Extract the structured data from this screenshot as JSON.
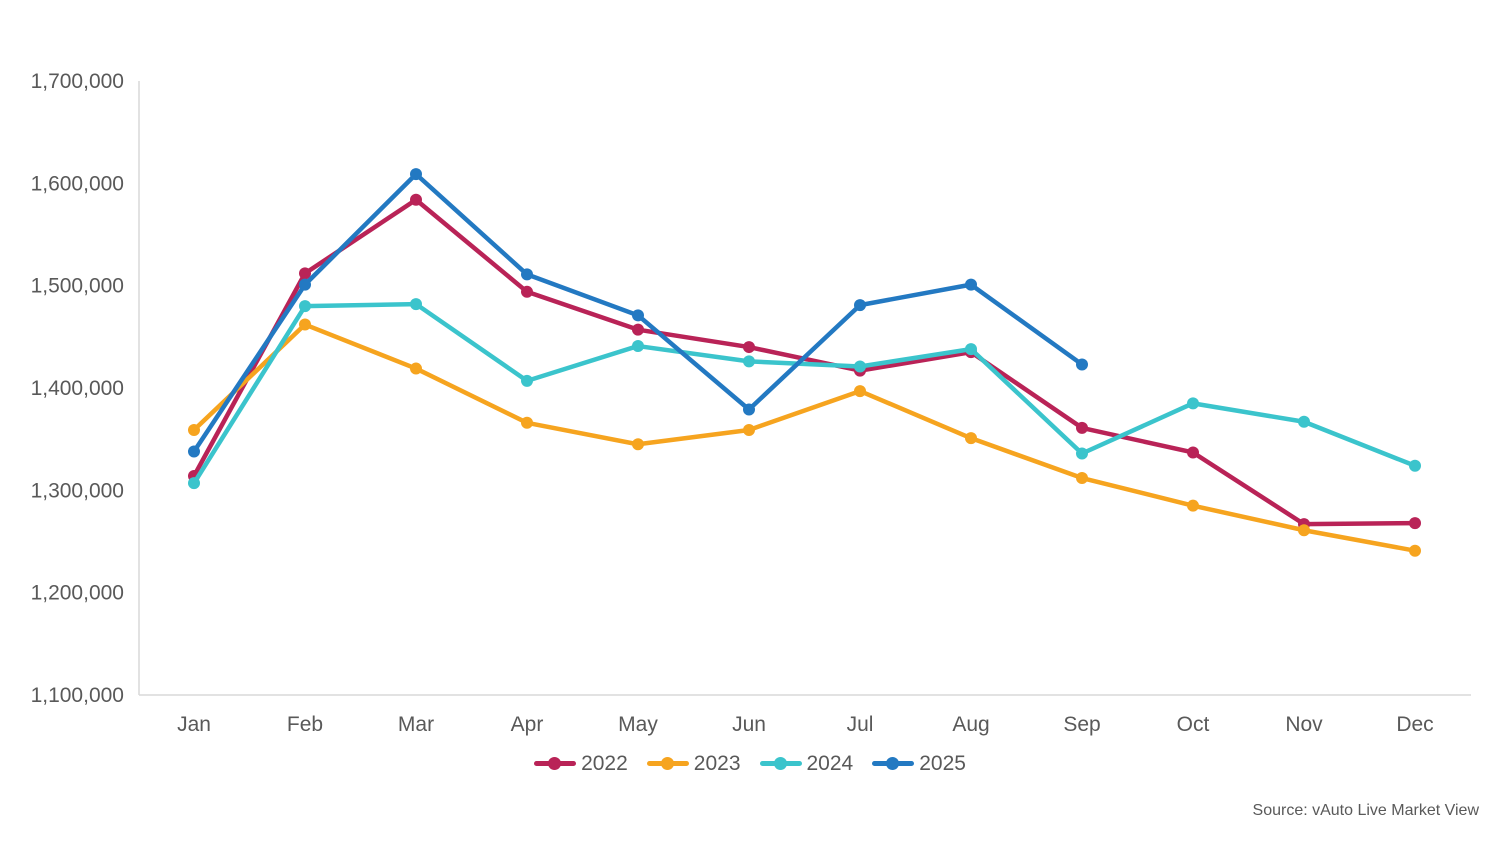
{
  "chart_data": {
    "type": "line",
    "title": "",
    "xlabel": "",
    "ylabel": "",
    "categories": [
      "Jan",
      "Feb",
      "Mar",
      "Apr",
      "May",
      "Jun",
      "Jul",
      "Aug",
      "Sep",
      "Oct",
      "Nov",
      "Dec"
    ],
    "series": [
      {
        "name": "2022",
        "color": "#b92357",
        "values": [
          1314000,
          1512000,
          1584000,
          1494000,
          1457000,
          1440000,
          1417000,
          1435000,
          1361000,
          1337000,
          1267000,
          1268000
        ]
      },
      {
        "name": "2023",
        "color": "#f6a41f",
        "values": [
          1359000,
          1462000,
          1419000,
          1366000,
          1345000,
          1359000,
          1397000,
          1351000,
          1312000,
          1285000,
          1261000,
          1241000
        ]
      },
      {
        "name": "2024",
        "color": "#3bc4cc",
        "values": [
          1307000,
          1480000,
          1482000,
          1407000,
          1441000,
          1426000,
          1421000,
          1438000,
          1336000,
          1385000,
          1367000,
          1324000
        ]
      },
      {
        "name": "2025",
        "color": "#2379c2",
        "values": [
          1338000,
          1501000,
          1609000,
          1511000,
          1471000,
          1379000,
          1481000,
          1501000,
          1423000
        ]
      }
    ],
    "ylim": [
      1100000,
      1700000
    ],
    "ytick_step": 100000,
    "ytick_labels": [
      "1,100,000",
      "1,200,000",
      "1,300,000",
      "1,400,000",
      "1,500,000",
      "1,600,000",
      "1,700,000"
    ],
    "grid": false,
    "legend_position": "bottom",
    "axis_color": "#d9d9d9",
    "label_color": "#595959"
  },
  "source_note": "Source: vAuto Live Market View"
}
